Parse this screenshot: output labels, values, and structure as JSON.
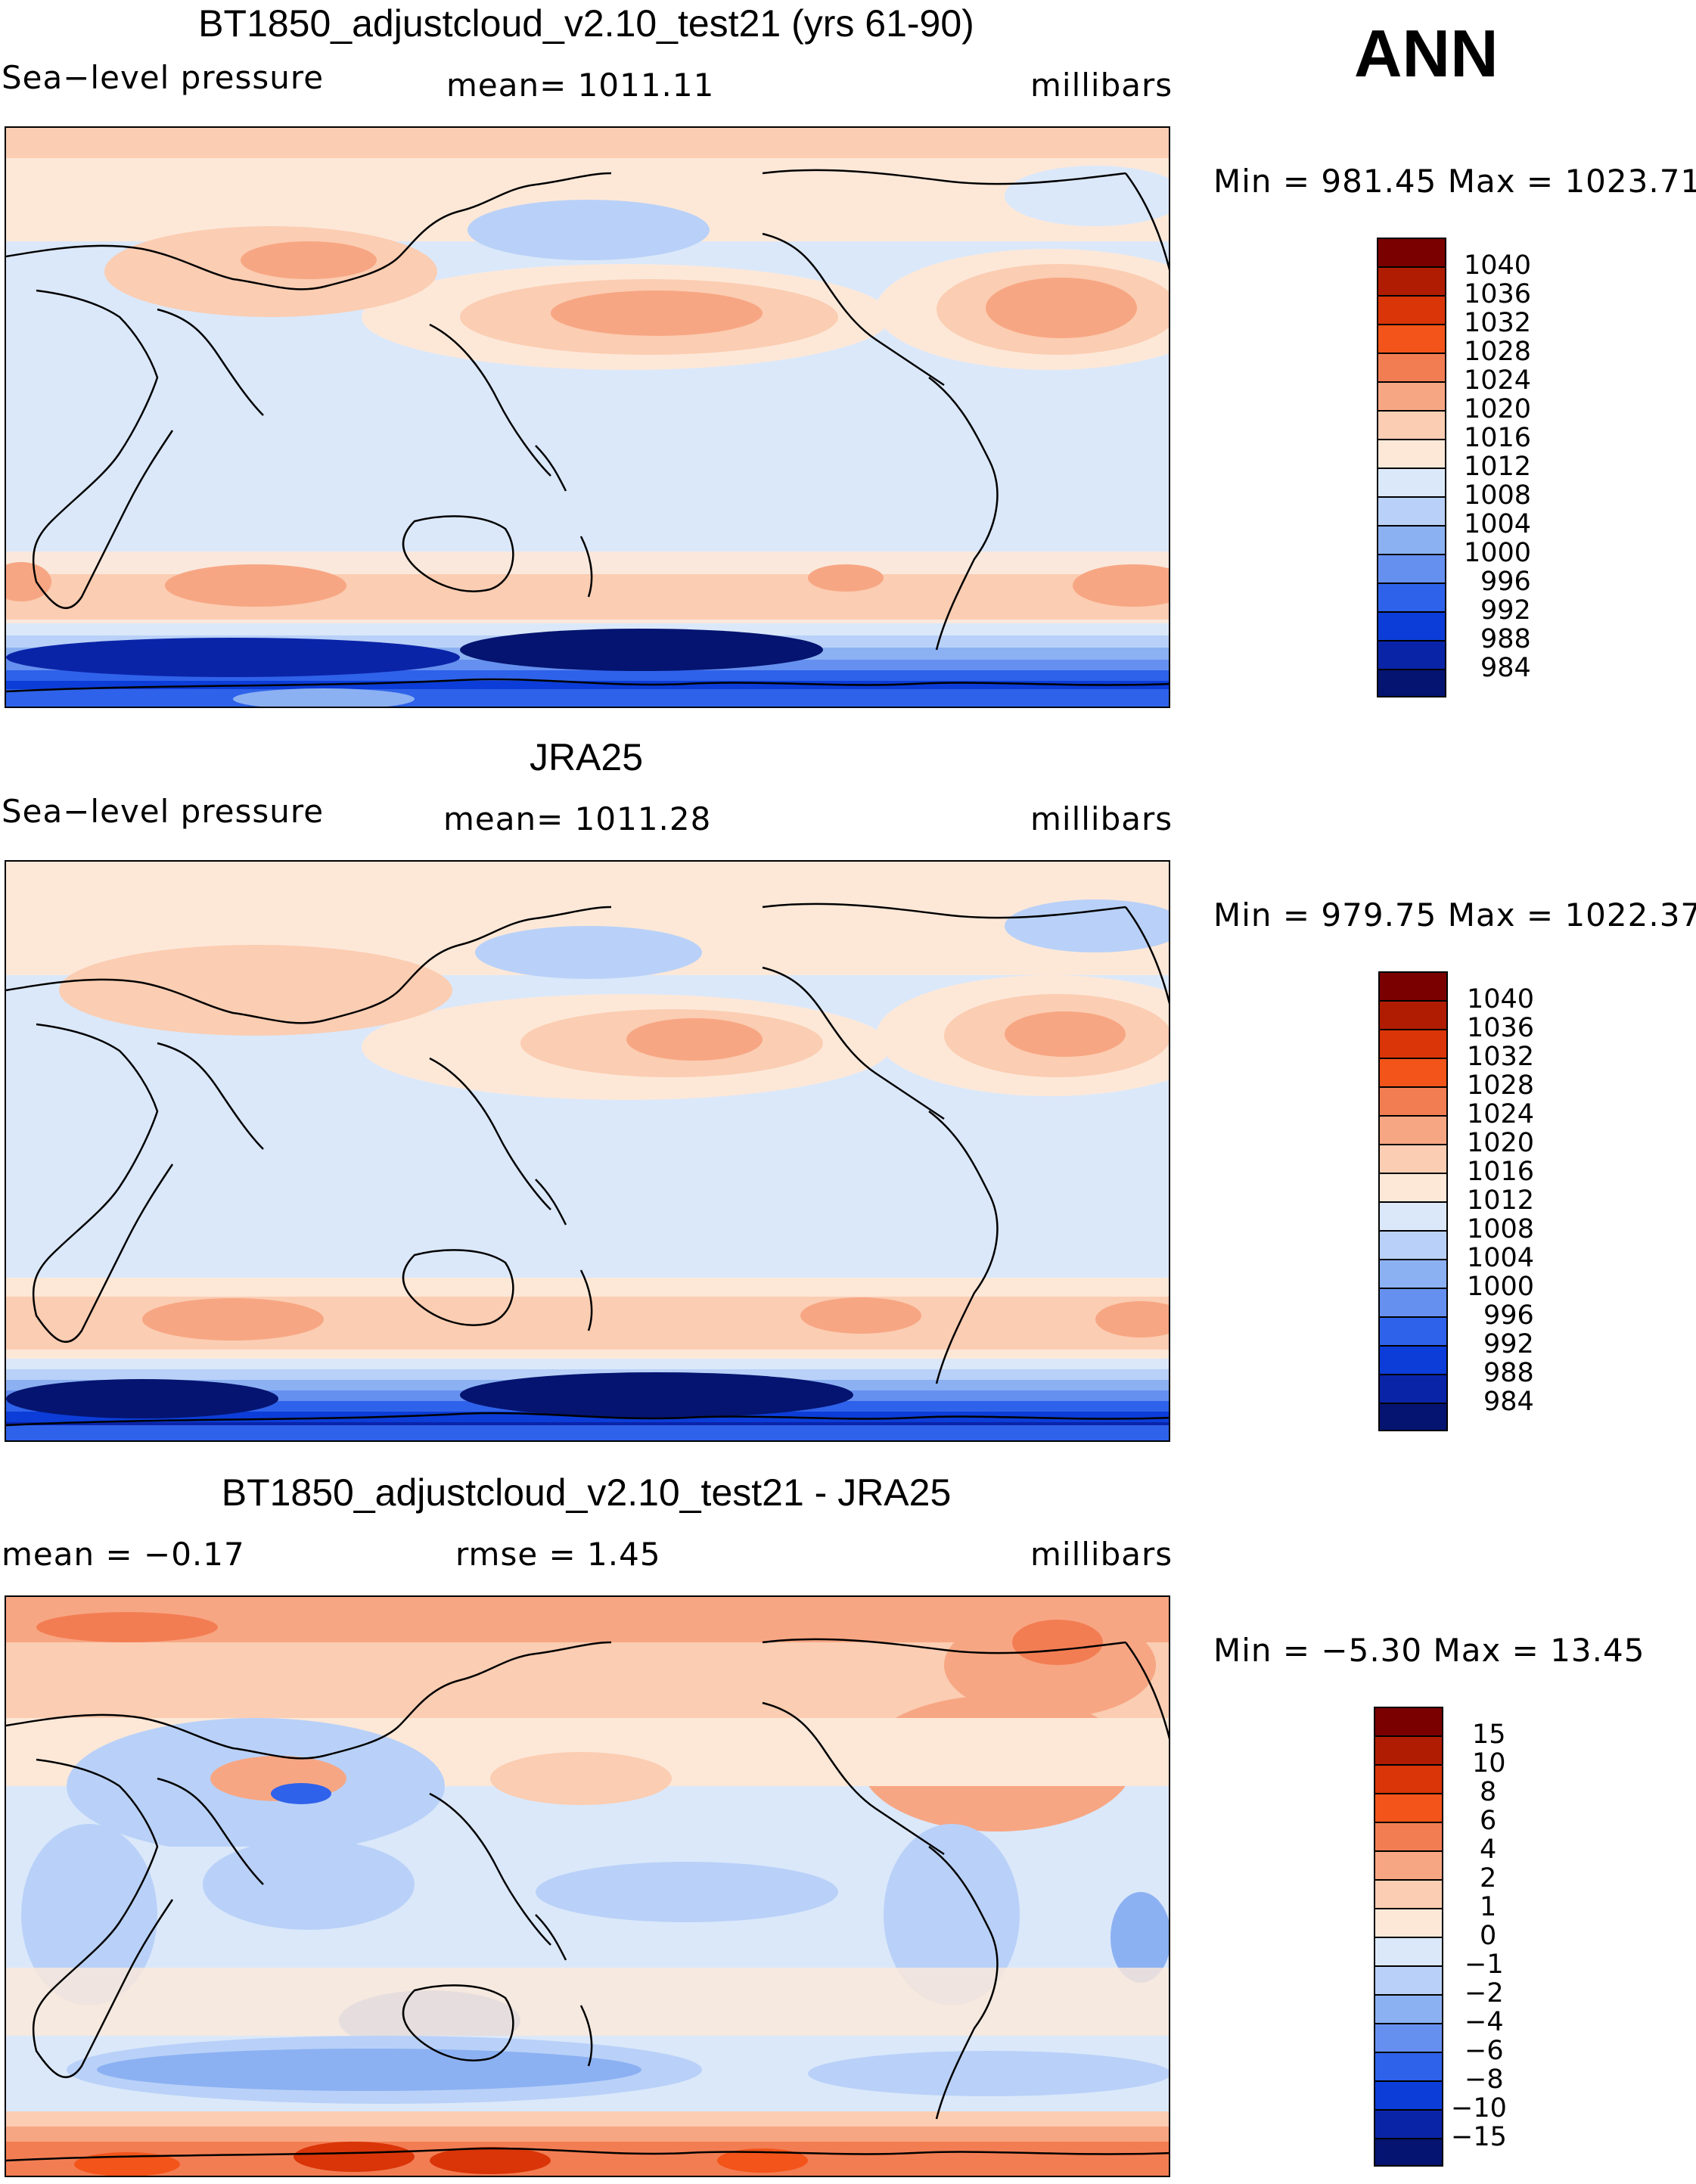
{
  "season": "ANN",
  "panels": [
    {
      "id": "model",
      "title": "BT1850_adjustcloud_v2.10_test21 (yrs 61-90)",
      "left_label": "Sea−level pressure",
      "center_label": "mean= 1011.11",
      "units": "millibars",
      "minmax": "Min = 981.45 Max = 1023.71"
    },
    {
      "id": "obs",
      "title": "JRA25",
      "left_label": "Sea−level pressure",
      "center_label": "mean= 1011.28",
      "units": "millibars",
      "minmax": "Min = 979.75 Max = 1022.37"
    },
    {
      "id": "diff",
      "title": "BT1850_adjustcloud_v2.10_test21 - JRA25",
      "left_label": "mean = −0.17",
      "center_label": "rmse = 1.45",
      "units": "millibars",
      "minmax": "Min = −5.30 Max = 13.45"
    }
  ],
  "colorbars": {
    "pressure": {
      "labels": [
        "1040",
        "1036",
        "1032",
        "1028",
        "1024",
        "1020",
        "1016",
        "1012",
        "1008",
        "1004",
        "1000",
        "996",
        "992",
        "988",
        "984"
      ],
      "colors": [
        "#7a0000",
        "#b01c02",
        "#d93508",
        "#f2541a",
        "#f37d53",
        "#f7a683",
        "#fbcdb2",
        "#fde8d8",
        "#dbe8fa",
        "#b9d1f8",
        "#8cb1f2",
        "#6690ef",
        "#2f62ea",
        "#0c3dd8",
        "#0a24a8",
        "#041470"
      ]
    },
    "diff": {
      "labels": [
        "15",
        "10",
        "8",
        "6",
        "4",
        "2",
        "1",
        "0",
        "−1",
        "−2",
        "−4",
        "−6",
        "−8",
        "−10",
        "−15"
      ],
      "colors": [
        "#7a0000",
        "#b01c02",
        "#d93508",
        "#f2541a",
        "#f37d53",
        "#f7a683",
        "#fbcdb2",
        "#fde8d8",
        "#dbe8fa",
        "#b9d1f8",
        "#8cb1f2",
        "#6690ef",
        "#2f62ea",
        "#0c3dd8",
        "#0a24a8",
        "#041470"
      ]
    }
  },
  "icons": {
    "coastline": "coastline-outline",
    "fill": "filled-contours"
  }
}
